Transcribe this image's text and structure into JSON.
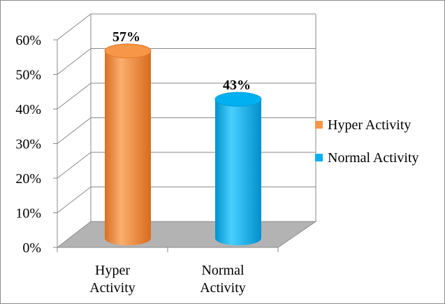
{
  "chart_data": {
    "type": "bar",
    "categories": [
      "Hyper Activity",
      "Normal Activity"
    ],
    "category_lines": [
      [
        "Hyper",
        "Activity"
      ],
      [
        "Normal",
        "Activity"
      ]
    ],
    "values": [
      57,
      43
    ],
    "data_labels": [
      "57%",
      "43%"
    ],
    "colors": [
      "#F79646",
      "#00B0F0"
    ],
    "ylim": [
      0,
      60
    ],
    "yticks": [
      0,
      10,
      20,
      30,
      40,
      50,
      60
    ],
    "ytick_labels": [
      "0%",
      "10%",
      "20%",
      "30%",
      "40%",
      "50%",
      "60%"
    ],
    "grid": true,
    "style": "3d-cylinder",
    "legend": {
      "position": "right",
      "entries": [
        {
          "label": "Hyper Activity",
          "color": "#F79646"
        },
        {
          "label": "Normal Activity",
          "color": "#00B0F0"
        }
      ]
    }
  }
}
